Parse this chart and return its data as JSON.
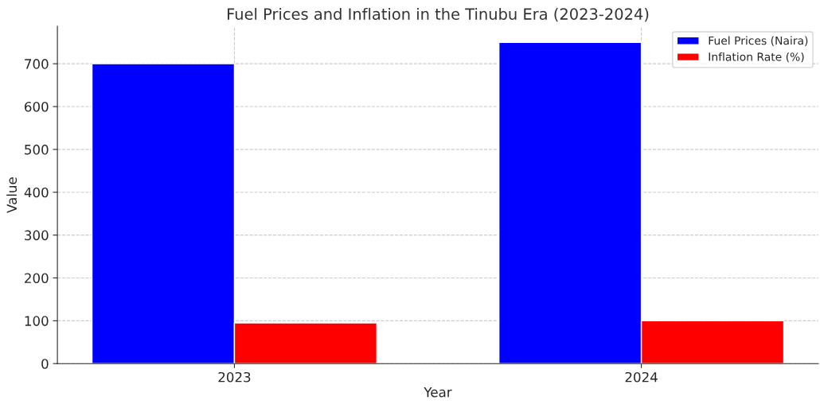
{
  "chart_data": {
    "type": "bar",
    "title": "Fuel Prices and Inflation in the Tinubu Era (2023-2024)",
    "xlabel": "Year",
    "ylabel": "Value",
    "categories": [
      "2023",
      "2024"
    ],
    "series": [
      {
        "name": "Fuel Prices (Naira)",
        "color": "#0000ff",
        "values": [
          700,
          750
        ]
      },
      {
        "name": "Inflation Rate (%)",
        "color": "#ff0000",
        "values": [
          95,
          100
        ]
      }
    ],
    "ylim": [
      0,
      787.5
    ],
    "yticks": [
      0,
      100,
      200,
      300,
      400,
      500,
      600,
      700
    ],
    "grid": true,
    "legend": "top right"
  }
}
